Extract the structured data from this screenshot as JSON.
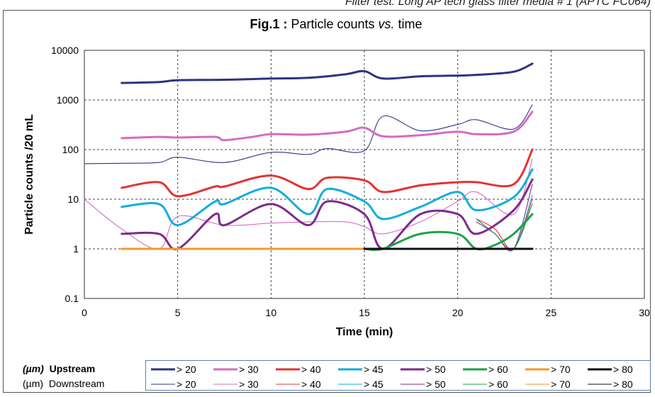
{
  "caption": "Filter test: Long AP tech glass filter media # 1 (APTC FC064)",
  "chart_data": {
    "type": "line",
    "title_bold": "Fig.1 :",
    "title_rest": " Particle counts ",
    "title_italic": "vs.",
    "title_end": " time",
    "xlabel": "Time (min)",
    "ylabel": "Particle counts /20 mL",
    "xlim": [
      0,
      30
    ],
    "ylim": [
      0.1,
      10000
    ],
    "yscale": "log",
    "x_ticks": [
      "0",
      "5",
      "10",
      "15",
      "20",
      "25",
      "30"
    ],
    "y_ticks": [
      "0.1",
      "1",
      "10",
      "100",
      "1000",
      "10000"
    ],
    "grid": true,
    "legend": {
      "unit": "(µm)",
      "upstream_label": "Upstream",
      "downstream_label": "Downstream",
      "entries": [
        "> 20",
        "> 30",
        "> 40",
        "> 45",
        "> 50",
        "> 60",
        "> 70",
        "> 80"
      ]
    },
    "series": [
      {
        "name": "> 20",
        "group": "Upstream",
        "color": "#2e3383",
        "x": [
          2,
          4,
          5,
          7.5,
          10,
          12,
          14,
          15,
          16,
          18,
          20,
          21,
          23,
          24
        ],
        "y": [
          2200,
          2300,
          2500,
          2550,
          2700,
          2800,
          3300,
          3800,
          2700,
          3000,
          3100,
          3200,
          3700,
          5400
        ]
      },
      {
        "name": "> 30",
        "group": "Upstream",
        "color": "#d56cc0",
        "x": [
          2,
          4,
          5,
          7,
          7.5,
          9,
          10,
          12,
          14,
          15,
          16,
          18,
          20,
          21,
          23,
          24
        ],
        "y": [
          170,
          180,
          175,
          180,
          155,
          180,
          205,
          200,
          230,
          275,
          185,
          195,
          230,
          205,
          230,
          580
        ]
      },
      {
        "name": "> 40",
        "group": "Upstream",
        "color": "#e53232",
        "x": [
          2,
          4,
          5,
          7,
          7.5,
          10,
          12,
          13,
          15,
          16,
          18,
          20,
          21,
          23,
          24
        ],
        "y": [
          17,
          22,
          11.5,
          18,
          18,
          30,
          16,
          27,
          24,
          14,
          19,
          22,
          22,
          20,
          100
        ]
      },
      {
        "name": "> 45",
        "group": "Upstream",
        "color": "#12aedc",
        "x": [
          2,
          4,
          5,
          7,
          7.5,
          10,
          12,
          13,
          15,
          16,
          18,
          20,
          21,
          23,
          24
        ],
        "y": [
          7,
          8,
          3,
          9,
          8,
          17,
          5,
          16,
          9,
          4,
          7,
          14,
          6,
          11,
          40
        ]
      },
      {
        "name": "> 50",
        "group": "Upstream",
        "color": "#7f2a8e",
        "x": [
          2,
          4,
          5,
          7,
          7.5,
          10,
          12,
          13,
          15,
          16,
          18,
          20,
          21,
          23,
          24
        ],
        "y": [
          2,
          2,
          1,
          5,
          3,
          8,
          3,
          9,
          5,
          1,
          5,
          5,
          2,
          6,
          25
        ]
      },
      {
        "name": "> 60",
        "group": "Upstream",
        "color": "#1ea24a",
        "x": [
          15,
          16,
          18,
          20,
          21,
          22,
          23,
          24
        ],
        "y": [
          1,
          1,
          2,
          2,
          1,
          1.2,
          2,
          5
        ]
      },
      {
        "name": "> 70",
        "group": "Upstream",
        "color": "#f39a2a",
        "x": [
          2,
          5,
          10,
          15
        ],
        "y": [
          1,
          1,
          1,
          1
        ]
      },
      {
        "name": "> 80",
        "group": "Upstream",
        "color": "#111111",
        "x": [
          15,
          20,
          24
        ],
        "y": [
          1,
          1,
          1
        ]
      },
      {
        "name": "> 20",
        "group": "Downstream",
        "color": "#2e3383",
        "x": [
          0,
          2,
          4,
          5,
          7.5,
          10,
          12,
          13,
          15,
          16,
          18,
          20,
          21,
          23,
          24
        ],
        "y": [
          52,
          53,
          55,
          70,
          55,
          88,
          80,
          105,
          95,
          470,
          240,
          320,
          400,
          260,
          800
        ]
      },
      {
        "name": "> 30",
        "group": "Downstream",
        "color": "#d56cc0",
        "x": [
          0,
          2,
          4,
          5,
          7.5,
          10,
          12,
          14,
          15,
          16,
          18,
          20,
          21,
          23,
          24
        ],
        "y": [
          10,
          2.5,
          1,
          4.5,
          3,
          3.3,
          3.5,
          3.5,
          2.8,
          2,
          3.5,
          9,
          14,
          5,
          65
        ]
      },
      {
        "name": "> 40",
        "group": "Downstream",
        "color": "#e53232",
        "x": [
          21,
          22,
          23,
          24
        ],
        "y": [
          4,
          2.5,
          1,
          10
        ]
      },
      {
        "name": "> 45",
        "group": "Downstream",
        "color": "#12aedc",
        "x": [
          21,
          22,
          23,
          24
        ],
        "y": [
          4,
          2,
          1,
          12
        ]
      },
      {
        "name": "> 50",
        "group": "Downstream",
        "color": "#7f2a8e",
        "x": [
          21,
          22,
          23,
          24
        ],
        "y": [
          3.5,
          2,
          1,
          20
        ]
      },
      {
        "name": "> 60",
        "group": "Downstream",
        "color": "#1ea24a",
        "x": [
          21,
          22,
          23,
          24
        ],
        "y": [
          4,
          2,
          1,
          8
        ]
      },
      {
        "name": "> 70",
        "group": "Downstream",
        "color": "#f39a2a",
        "x": [
          2,
          5,
          10,
          15
        ],
        "y": [
          1,
          1,
          1,
          1
        ]
      },
      {
        "name": "> 80",
        "group": "Downstream",
        "color": "#111111",
        "x": [
          15,
          20,
          24
        ],
        "y": [
          1,
          1,
          1
        ]
      }
    ]
  }
}
